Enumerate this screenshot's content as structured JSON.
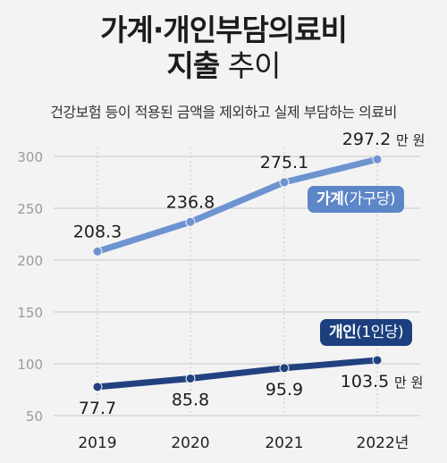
{
  "title_line1": "가계·개인부담의료비",
  "title_line2_bold": "지출",
  "title_line2_light": " 추이",
  "subtitle": "건강보험 등이 적용된 금액을 제외하고 실제 부담하는 의료비",
  "colors": {
    "household": "#6d93d1",
    "individual": "#21427f",
    "grid": "#c8c8c8",
    "tick": "#9a9a9a"
  },
  "chart_data": {
    "type": "line",
    "categories": [
      "2019",
      "2020",
      "2021",
      "2022년"
    ],
    "y_ticks": [
      "50",
      "100",
      "150",
      "200",
      "250",
      "300"
    ],
    "ylim": [
      50,
      300
    ],
    "grid": true,
    "series": [
      {
        "key": "household",
        "legend_bold": "가계",
        "legend_rest": "(가구당)",
        "values": [
          208.3,
          236.8,
          275.1,
          297.2
        ],
        "labels": [
          "208.3",
          "236.8",
          "275.1",
          "297.2"
        ],
        "unit": "만 원"
      },
      {
        "key": "individual",
        "legend_bold": "개인",
        "legend_rest": "(1인당)",
        "values": [
          77.7,
          85.8,
          95.9,
          103.5
        ],
        "labels": [
          "77.7",
          "85.8",
          "95.9",
          "103.5"
        ],
        "unit": "만 원"
      }
    ]
  }
}
